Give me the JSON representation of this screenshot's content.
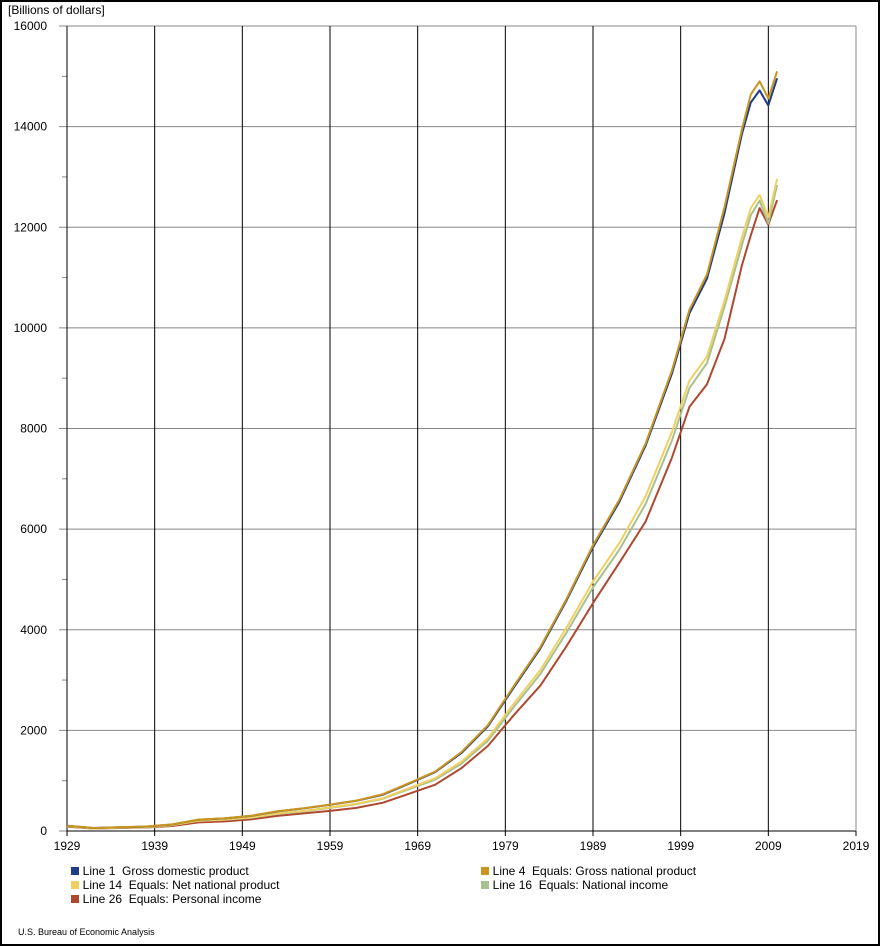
{
  "chart_data": {
    "type": "line",
    "unit_label": "[Billions of dollars]",
    "xlim": [
      1929,
      2019
    ],
    "ylim": [
      0,
      16000
    ],
    "x_ticks": [
      1929,
      1939,
      1949,
      1959,
      1969,
      1979,
      1989,
      1999,
      2009,
      2019
    ],
    "y_ticks": [
      0,
      2000,
      4000,
      6000,
      8000,
      10000,
      12000,
      14000,
      16000
    ],
    "grid": true,
    "legend_position": "bottom",
    "x": [
      1929,
      1932,
      1935,
      1938,
      1941,
      1944,
      1947,
      1950,
      1953,
      1956,
      1959,
      1962,
      1965,
      1968,
      1971,
      1974,
      1977,
      1980,
      1983,
      1986,
      1989,
      1992,
      1995,
      1998,
      2000,
      2002,
      2004,
      2006,
      2007,
      2008,
      2009,
      2010
    ],
    "series": [
      {
        "name": "Line 1  Gross domestic product",
        "color": "#1f3c88",
        "values": [
          104,
          59,
          74,
          88,
          130,
          225,
          250,
          300,
          390,
          450,
          520,
          600,
          720,
          940,
          1170,
          1550,
          2080,
          2860,
          3630,
          4590,
          5640,
          6540,
          7660,
          9090,
          10290,
          10980,
          12280,
          13860,
          14480,
          14720,
          14420,
          14960
        ]
      },
      {
        "name": "Line 4  Equals: Gross national product",
        "color": "#c8961e",
        "values": [
          105,
          60,
          75,
          89,
          131,
          227,
          252,
          302,
          393,
          453,
          525,
          605,
          730,
          950,
          1180,
          1570,
          2100,
          2890,
          3660,
          4620,
          5680,
          6580,
          7700,
          9150,
          10360,
          11060,
          12400,
          13950,
          14640,
          14900,
          14560,
          15100
        ]
      },
      {
        "name": "Line 14  Equals: Net national product",
        "color": "#f0d060",
        "values": [
          95,
          52,
          66,
          78,
          118,
          205,
          228,
          270,
          350,
          400,
          470,
          540,
          650,
          850,
          1050,
          1380,
          1840,
          2540,
          3200,
          4050,
          4960,
          5720,
          6650,
          7930,
          8950,
          9430,
          10540,
          11800,
          12380,
          12640,
          12200,
          12960
        ]
      },
      {
        "name": "Line 16  Equals: National income",
        "color": "#a8c090",
        "values": [
          94,
          51,
          64,
          76,
          115,
          200,
          222,
          262,
          340,
          390,
          460,
          530,
          640,
          830,
          1020,
          1340,
          1790,
          2470,
          3120,
          3950,
          4840,
          5590,
          6500,
          7760,
          8800,
          9300,
          10420,
          11650,
          12240,
          12530,
          12080,
          12840
        ]
      },
      {
        "name": "Line 26  Equals: Personal income",
        "color": "#b04830",
        "values": [
          85,
          50,
          60,
          69,
          100,
          170,
          190,
          230,
          300,
          350,
          400,
          460,
          560,
          740,
          920,
          1250,
          1690,
          2310,
          2890,
          3680,
          4530,
          5330,
          6150,
          7420,
          8430,
          8880,
          9780,
          11250,
          11840,
          12380,
          12050,
          12540
        ]
      }
    ]
  },
  "source": "U.S. Bureau of Economic Analysis"
}
